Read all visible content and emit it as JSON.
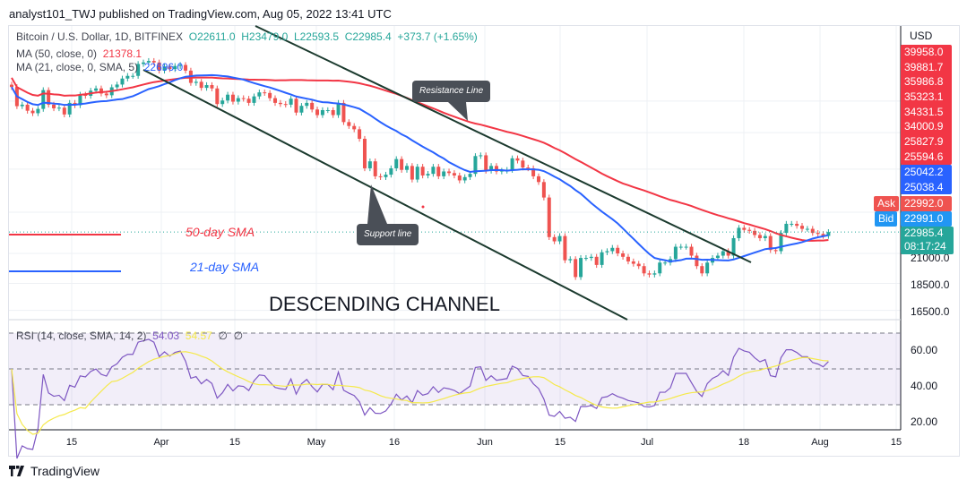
{
  "header": {
    "published": "analyst101_TWJ published on TradingView.com, Aug 05, 2022 13:41 UTC"
  },
  "legend": {
    "symbol": "Bitcoin / U.S. Dollar, 1D, BITFINEX",
    "open": "O22611.0",
    "high": "H23479.0",
    "low": "L22593.5",
    "close": "C22985.4",
    "change": "+373.7 (+1.65%)",
    "ma50_label": "MA (50, close, 0)",
    "ma50_value": "21378.1",
    "ma21_label": "MA (21, close, 0, SMA, 5)",
    "ma21_value": "22696.0",
    "rsi_label": "RSI (14, close, SMA, 14, 2)",
    "rsi_value": "54.03",
    "rsi_sma_value": "54.57",
    "rsi_extra1": "∅",
    "rsi_extra2": "∅"
  },
  "price_axis": {
    "currency": "USD",
    "red_labels": [
      "39958.0",
      "39881.7",
      "35986.8",
      "35323.1",
      "34331.5",
      "34000.9",
      "25827.9",
      "25594.6"
    ],
    "blue_labels": [
      "25042.2",
      "25038.4"
    ],
    "ask_label": "Ask",
    "ask_value": "22992.0",
    "bid_label": "Bid",
    "bid_value": "22991.0",
    "last_price": "22985.4",
    "countdown": "08:17:24",
    "ticks": [
      "21000.0",
      "18500.0",
      "16500.0"
    ],
    "scale": "log"
  },
  "rsi_axis": {
    "ticks": [
      "60.00",
      "40.00",
      "20.00"
    ]
  },
  "time_axis": {
    "ticks": [
      "15",
      "Apr",
      "15",
      "May",
      "16",
      "Jun",
      "15",
      "Jul",
      "18",
      "Aug",
      "15"
    ]
  },
  "annotations": {
    "resistance": "Resistance Line",
    "support": "Support line",
    "sma50": "50-day SMA",
    "sma21": "21-day SMA",
    "channel": "DESCENDING CHANNEL"
  },
  "footer": {
    "brand": "TradingView"
  },
  "colors": {
    "up": "#26a69a",
    "down": "#ef5350",
    "ma50": "#f23645",
    "ma21": "#2962ff",
    "rsi": "#7e57c2",
    "rsi_sma": "#f5e94a",
    "trendline": "#1b3a2e"
  },
  "chart_data": {
    "type": "candlestick",
    "title": "Bitcoin / U.S. Dollar, 1D, BITFINEX",
    "start_date": "2022-03-03",
    "end_date": "2022-08-05",
    "y_scale": "log",
    "closes": [
      42450,
      39150,
      39400,
      38400,
      38000,
      38700,
      41900,
      39400,
      38800,
      38900,
      37800,
      39700,
      39300,
      41100,
      40900,
      41800,
      42200,
      41300,
      41000,
      42400,
      42900,
      44000,
      44500,
      44500,
      46800,
      47100,
      47400,
      47100,
      45500,
      46300,
      45800,
      46400,
      46600,
      45500,
      43200,
      43400,
      42300,
      42800,
      42200,
      39500,
      40100,
      41100,
      39900,
      40500,
      40400,
      39700,
      40800,
      41500,
      41400,
      40500,
      39700,
      39500,
      39400,
      40400,
      38100,
      39200,
      39700,
      38600,
      37700,
      38500,
      38500,
      37700,
      39700,
      36600,
      36000,
      35500,
      34100,
      30100,
      31000,
      29100,
      29000,
      29300,
      30100,
      31300,
      29900,
      30400,
      28700,
      30300,
      29200,
      29400,
      30300,
      29100,
      29700,
      29500,
      29200,
      28600,
      29000,
      29400,
      31700,
      31800,
      29800,
      30400,
      29700,
      29800,
      29900,
      31400,
      31100,
      30200,
      30100,
      29100,
      28400,
      26600,
      22500,
      22100,
      22600,
      20400,
      20500,
      19000,
      20600,
      20600,
      20700,
      20000,
      21100,
      21200,
      21500,
      21000,
      20700,
      20300,
      20100,
      19900,
      19300,
      19200,
      19300,
      20200,
      20200,
      20500,
      21600,
      21600,
      21600,
      20800,
      19900,
      19300,
      20200,
      20600,
      20800,
      21200,
      20800,
      22400,
      23400,
      23200,
      23100,
      22700,
      22400,
      22600,
      21300,
      21200,
      22900,
      23800,
      23800,
      23600,
      23300,
      23300,
      22900,
      22800,
      22611,
      22985.4
    ],
    "indicators": [
      "MA 50",
      "MA 21",
      "RSI 14 with SMA 14"
    ],
    "rsi_bands": [
      30,
      50,
      70
    ]
  }
}
